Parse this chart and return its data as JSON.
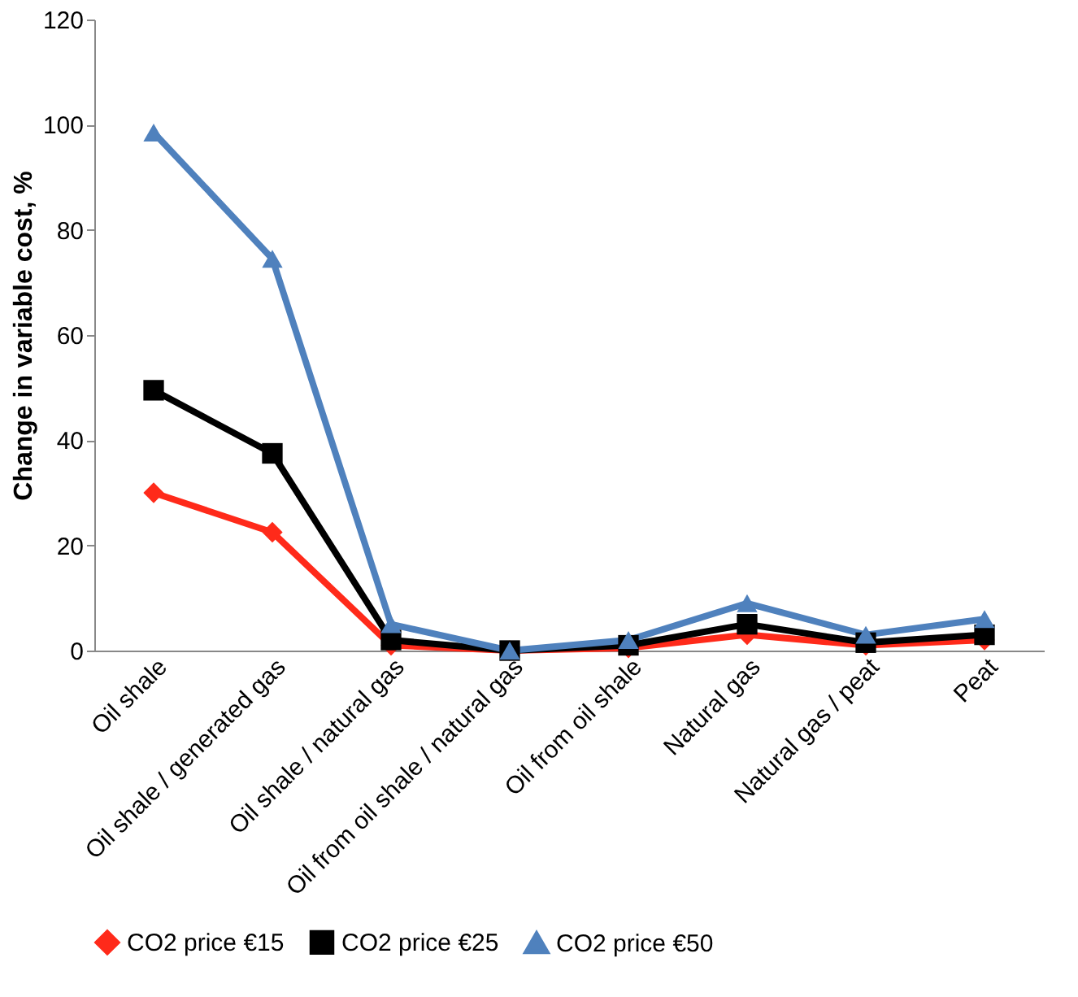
{
  "chart_data": {
    "type": "line",
    "ylabel": "Change in variable cost, %",
    "categories": [
      "Oil shale",
      "Oil shale / generated gas",
      "Oil shale / natural gas",
      "Oil from oil shale / natural gas",
      "Oil from oil shale",
      "Natural gas",
      "Natural gas / peat",
      "Peat"
    ],
    "series": [
      {
        "name": "CO2 price €15",
        "color": "#ff2a1a",
        "marker": "diamond",
        "values": [
          30,
          22.5,
          1,
          0,
          0.5,
          3,
          1,
          2
        ]
      },
      {
        "name": "CO2 price €25",
        "color": "#000000",
        "marker": "square",
        "values": [
          49.5,
          37.5,
          2,
          0,
          1,
          5,
          1.5,
          3
        ]
      },
      {
        "name": "CO2 price €50",
        "color": "#4f81bd",
        "marker": "triangle",
        "values": [
          98.5,
          74.5,
          5,
          0,
          2,
          9,
          3,
          6
        ]
      }
    ],
    "ylim": [
      0,
      120
    ],
    "yticks": [
      0,
      20,
      40,
      60,
      80,
      100,
      120
    ],
    "grid": false,
    "legend": "bottom"
  }
}
